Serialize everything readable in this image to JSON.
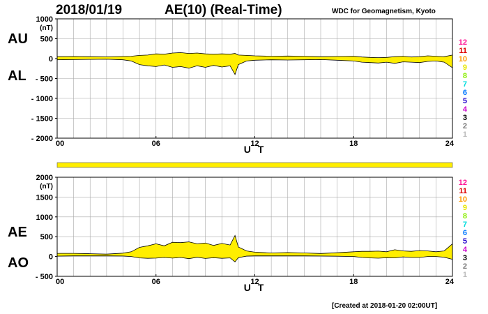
{
  "header": {
    "date": "2018/01/19",
    "title": "AE(10) (Real-Time)",
    "source": "WDC for Geomagnetism, Kyoto"
  },
  "footer": {
    "created": "[Created at 2018-01-20 02:00UT]"
  },
  "colors": {
    "fill": "#ffee00",
    "line": "#000000",
    "grid": "#a8a8a8"
  },
  "station_legend": [
    {
      "label": "12",
      "color": "#ff1493"
    },
    {
      "label": "11",
      "color": "#dd0000"
    },
    {
      "label": "10",
      "color": "#ff9900"
    },
    {
      "label": "9",
      "color": "#e6e600"
    },
    {
      "label": "8",
      "color": "#88ee00"
    },
    {
      "label": "7",
      "color": "#00dddd"
    },
    {
      "label": "6",
      "color": "#0077ff"
    },
    {
      "label": "5",
      "color": "#2200cc"
    },
    {
      "label": "4",
      "color": "#cc00cc"
    },
    {
      "label": "3",
      "color": "#000000"
    },
    {
      "label": "2",
      "color": "#777777"
    },
    {
      "label": "1",
      "color": "#bbbbbb"
    }
  ],
  "chart_data": [
    {
      "type": "area",
      "id": "au-al",
      "left_labels": [
        "AU",
        "AL"
      ],
      "unit": "(nT)",
      "xlabel": "U T",
      "xlim": [
        0,
        24
      ],
      "xticks": [
        0,
        6,
        12,
        18,
        24
      ],
      "xtick_labels": [
        "00",
        "06",
        "12",
        "18",
        "24"
      ],
      "ylim": [
        -2000,
        1000
      ],
      "yticks": [
        1000,
        500,
        0,
        -500,
        -1000,
        -1500,
        -2000
      ],
      "ytick_labels": [
        "1000",
        "500",
        "0",
        "- 500",
        "- 1000",
        "- 1500",
        "- 2000"
      ],
      "grid": true,
      "x": [
        0,
        1,
        2,
        3,
        4,
        4.5,
        5,
        5.5,
        6,
        6.5,
        7,
        7.5,
        8,
        8.5,
        9,
        9.5,
        10,
        10.5,
        10.8,
        11,
        11.5,
        12,
        13,
        14,
        15,
        16,
        17,
        18,
        18.5,
        19,
        19.5,
        20,
        20.5,
        21,
        21.5,
        22,
        22.5,
        23,
        23.5,
        24
      ],
      "series": [
        {
          "name": "AU",
          "values": [
            50,
            55,
            50,
            45,
            55,
            60,
            80,
            90,
            120,
            110,
            140,
            150,
            130,
            140,
            120,
            110,
            120,
            110,
            130,
            90,
            80,
            70,
            60,
            65,
            60,
            50,
            55,
            60,
            40,
            30,
            25,
            30,
            50,
            60,
            40,
            50,
            70,
            60,
            50,
            90
          ]
        },
        {
          "name": "AL",
          "values": [
            -30,
            -25,
            -20,
            -15,
            -30,
            -60,
            -150,
            -180,
            -200,
            -160,
            -220,
            -200,
            -240,
            -180,
            -220,
            -170,
            -210,
            -180,
            -400,
            -150,
            -60,
            -40,
            -30,
            -35,
            -30,
            -25,
            -40,
            -60,
            -90,
            -100,
            -110,
            -90,
            -120,
            -80,
            -90,
            -100,
            -70,
            -60,
            -90,
            -230
          ]
        }
      ]
    },
    {
      "type": "bar",
      "id": "coverage-bar",
      "xlim": [
        0,
        24
      ],
      "values": [
        1
      ],
      "color": "#ffee00"
    },
    {
      "type": "area",
      "id": "ae-ao",
      "left_labels": [
        "AE",
        "AO"
      ],
      "unit": "(nT)",
      "xlabel": "U T",
      "xlim": [
        0,
        24
      ],
      "xticks": [
        0,
        6,
        12,
        18,
        24
      ],
      "xtick_labels": [
        "00",
        "06",
        "12",
        "18",
        "24"
      ],
      "ylim": [
        -500,
        2000
      ],
      "yticks": [
        2000,
        1500,
        1000,
        500,
        0,
        -500
      ],
      "ytick_labels": [
        "2000",
        "1500",
        "1000",
        "500",
        "0",
        "- 500"
      ],
      "grid": true,
      "x": [
        0,
        1,
        2,
        3,
        4,
        4.5,
        5,
        5.5,
        6,
        6.5,
        7,
        7.5,
        8,
        8.5,
        9,
        9.5,
        10,
        10.5,
        10.8,
        11,
        11.5,
        12,
        13,
        14,
        15,
        16,
        17,
        18,
        18.5,
        19,
        19.5,
        20,
        20.5,
        21,
        21.5,
        22,
        22.5,
        23,
        23.5,
        24
      ],
      "series": [
        {
          "name": "AE",
          "values": [
            80,
            80,
            70,
            60,
            85,
            120,
            230,
            270,
            320,
            270,
            360,
            350,
            370,
            320,
            340,
            280,
            330,
            290,
            530,
            240,
            140,
            110,
            90,
            100,
            90,
            75,
            95,
            120,
            130,
            130,
            135,
            120,
            170,
            140,
            130,
            150,
            140,
            120,
            140,
            320
          ]
        },
        {
          "name": "AO",
          "values": [
            10,
            15,
            15,
            15,
            12,
            0,
            -35,
            -45,
            -40,
            -25,
            -40,
            -25,
            -55,
            -20,
            -50,
            -30,
            -45,
            -35,
            -135,
            -30,
            10,
            15,
            15,
            15,
            15,
            12,
            8,
            0,
            -25,
            -35,
            -42,
            -30,
            -35,
            -10,
            -25,
            -25,
            0,
            0,
            -20,
            -70
          ]
        }
      ]
    }
  ]
}
